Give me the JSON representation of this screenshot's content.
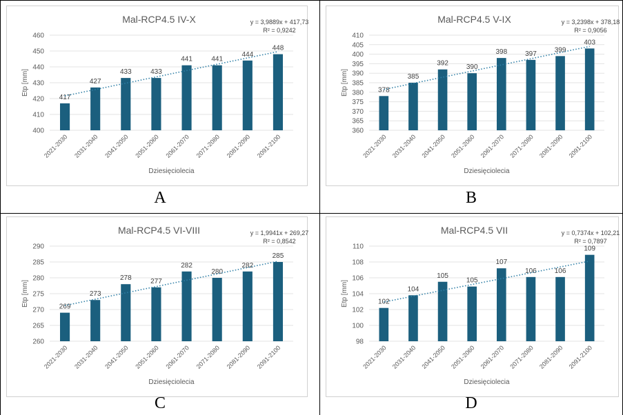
{
  "panels": [
    {
      "letter": "A",
      "chart_data": {
        "type": "bar",
        "title": "Mal-RCP4.5 IV-X",
        "equation": "y = 3,9889x + 417,73",
        "r2": "R² = 0,9242",
        "xlabel": "Dziesięciolecia",
        "ylabel": "Etp [mm]",
        "categories": [
          "2021-2030",
          "2031-2040",
          "2041-2050",
          "2051-2060",
          "2061-2070",
          "2071-2080",
          "2081-2090",
          "2091-2100"
        ],
        "values": [
          417,
          427,
          433,
          433,
          441,
          441,
          444,
          448
        ],
        "trend": {
          "slope": 3.9889,
          "intercept": 417.73
        },
        "ylim": [
          400,
          460
        ],
        "yticks": [
          400,
          410,
          420,
          430,
          440,
          450,
          460
        ],
        "bar_color": "#1b5f7e",
        "trend_color": "#2f7fa6"
      }
    },
    {
      "letter": "B",
      "chart_data": {
        "type": "bar",
        "title": "Mal-RCP4.5 V-IX",
        "equation": "y = 3,2398x + 378,18",
        "r2": "R² = 0,9056",
        "xlabel": "Dziesięciolecia",
        "ylabel": "Etp [mm]",
        "categories": [
          "2021-2030",
          "2031-2040",
          "2041-2050",
          "2051-2060",
          "2061-2070",
          "2071-2080",
          "2081-2090",
          "2091-2100"
        ],
        "values": [
          378,
          385,
          392,
          390,
          398,
          397,
          399,
          403
        ],
        "trend": {
          "slope": 3.2398,
          "intercept": 378.18
        },
        "ylim": [
          360,
          410
        ],
        "yticks": [
          360,
          365,
          370,
          375,
          380,
          385,
          390,
          395,
          400,
          405,
          410
        ],
        "bar_color": "#1b5f7e",
        "trend_color": "#2f7fa6"
      }
    },
    {
      "letter": "C",
      "chart_data": {
        "type": "bar",
        "title": "Mal-RCP4.5 VI-VIII",
        "equation": "y = 1,9941x + 269,27",
        "r2": "R² = 0,8542",
        "xlabel": "Dziesięciolecia",
        "ylabel": "Etp [mm]",
        "categories": [
          "2021-2030",
          "2031-2040",
          "2041-2050",
          "2051-2060",
          "2061-2070",
          "2071-2080",
          "2081-2090",
          "2091-2100"
        ],
        "values": [
          269,
          273,
          278,
          277,
          282,
          280,
          282,
          285
        ],
        "trend": {
          "slope": 1.9941,
          "intercept": 269.27
        },
        "ylim": [
          260,
          290
        ],
        "yticks": [
          260,
          265,
          270,
          275,
          280,
          285,
          290
        ],
        "bar_color": "#1b5f7e",
        "trend_color": "#2f7fa6"
      }
    },
    {
      "letter": "D",
      "chart_data": {
        "type": "bar",
        "title": "Mal-RCP4.5 VII",
        "equation": "y = 0,7374x + 102,21",
        "r2": "R² = 0,7897",
        "xlabel": "Dziesięciolecia",
        "ylabel": "Etp [mm]",
        "categories": [
          "2021-2030",
          "2031-2040",
          "2041-2050",
          "2051-2060",
          "2061-2070",
          "2071-2080",
          "2081-2090",
          "2091-2100"
        ],
        "values": [
          102.2,
          103.8,
          105.5,
          104.9,
          107.2,
          106.1,
          106.1,
          108.9
        ],
        "value_labels": [
          "102",
          "104",
          "105",
          "105",
          "107",
          "106",
          "106",
          "109"
        ],
        "trend": {
          "slope": 0.7374,
          "intercept": 102.21
        },
        "ylim": [
          98,
          110
        ],
        "yticks": [
          98,
          100,
          102,
          104,
          106,
          108,
          110
        ],
        "bar_color": "#1b5f7e",
        "trend_color": "#2f7fa6"
      }
    }
  ]
}
